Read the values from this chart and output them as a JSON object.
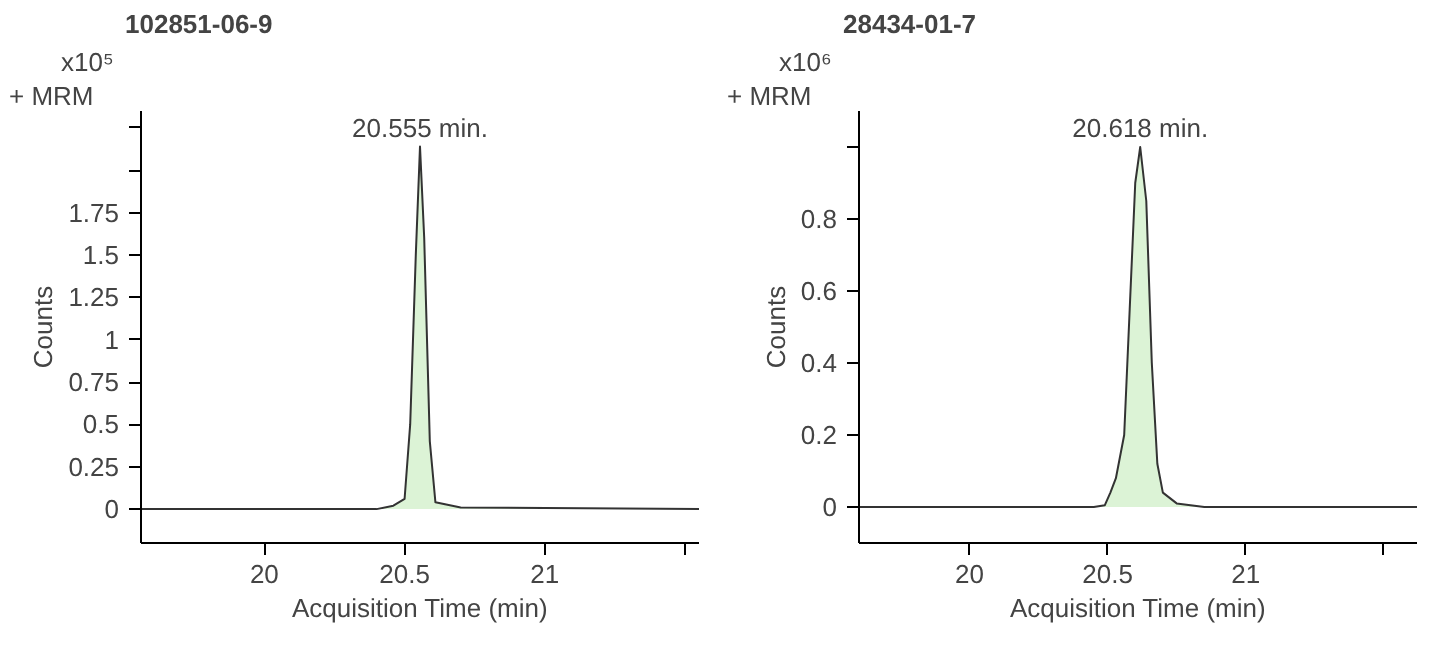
{
  "chart_data": [
    {
      "type": "area",
      "title": "102851-06-9",
      "xlabel": "Acquisition Time (min)",
      "ylabel": "Counts",
      "annotations": [
        "+ MRM",
        "x10⁵",
        {
          "text": "20.555 min.",
          "x": 20.555,
          "y": 2.14
        }
      ],
      "series": [
        {
          "color": "#dcf3d6",
          "x": [
            19.56,
            20.4,
            20.46,
            20.5,
            20.52,
            20.54,
            20.555,
            20.57,
            20.59,
            20.61,
            20.7,
            21.55
          ],
          "values": [
            0,
            0,
            0.02,
            0.06,
            0.5,
            1.5,
            2.14,
            1.6,
            0.4,
            0.04,
            0.01,
            0
          ]
        }
      ],
      "xlim": [
        19.56,
        21.55
      ],
      "xticks": [
        20,
        20.5,
        21,
        {
          "value": 21.5,
          "label": null
        }
      ],
      "ylim": [
        -0.2,
        2.35
      ],
      "yticks": [
        0,
        0.25,
        0.5,
        0.75,
        1,
        1.25,
        1.5,
        1.75,
        {
          "value": 2,
          "label": null
        },
        {
          "value": 2.25,
          "label": null
        }
      ],
      "grid": false
    },
    {
      "type": "area",
      "title": "28434-01-7",
      "xlabel": "Acquisition Time (min)",
      "ylabel": "Counts",
      "annotations": [
        "+ MRM",
        "x10⁶",
        {
          "text": "20.618 min.",
          "x": 20.618,
          "y": 1.0
        }
      ],
      "series": [
        {
          "color": "#dcf3d6",
          "x": [
            19.6,
            20.45,
            20.49,
            20.51,
            20.53,
            20.56,
            20.58,
            20.6,
            20.618,
            20.64,
            20.66,
            20.68,
            20.7,
            20.75,
            20.85,
            21.62
          ],
          "values": [
            0,
            0,
            0.005,
            0.04,
            0.08,
            0.2,
            0.55,
            0.9,
            1.0,
            0.85,
            0.4,
            0.12,
            0.04,
            0.01,
            0,
            0
          ]
        }
      ],
      "xlim": [
        19.6,
        21.62
      ],
      "xticks": [
        20,
        20.5,
        21,
        {
          "value": 21.5,
          "label": null
        }
      ],
      "ylim": [
        -0.1,
        1.1
      ],
      "yticks": [
        0,
        0.2,
        0.4,
        0.6,
        0.8,
        {
          "value": 1,
          "label": null
        }
      ],
      "grid": false
    }
  ]
}
